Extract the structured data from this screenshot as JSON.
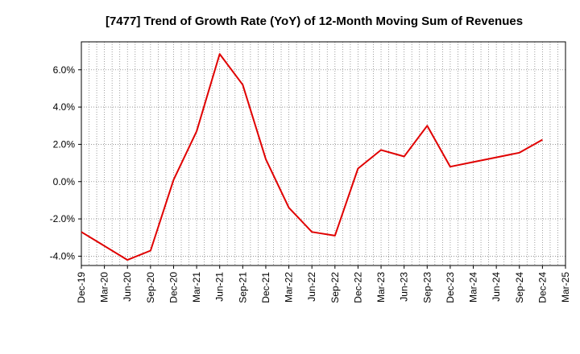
{
  "chart_data": {
    "type": "line",
    "title": "[7477]  Trend of Growth Rate (YoY) of 12-Month Moving Sum of Revenues",
    "xlabel": "",
    "ylabel": "",
    "categories": [
      "Dec-19",
      "Mar-20",
      "Jun-20",
      "Sep-20",
      "Dec-20",
      "Mar-21",
      "Jun-21",
      "Sep-21",
      "Dec-21",
      "Mar-22",
      "Jun-22",
      "Sep-22",
      "Dec-22",
      "Mar-23",
      "Jun-23",
      "Sep-23",
      "Dec-23",
      "Mar-24",
      "Jun-24",
      "Sep-24",
      "Dec-24",
      "Mar-25"
    ],
    "series": [
      {
        "color": "#e00000",
        "values": [
          -2.7,
          -3.45,
          -4.2,
          -3.7,
          0.1,
          2.7,
          6.85,
          5.2,
          1.2,
          -1.4,
          -2.7,
          -2.9,
          0.7,
          1.7,
          1.35,
          3.0,
          0.8,
          1.05,
          1.3,
          1.55,
          2.25,
          null
        ]
      }
    ],
    "yticks": [
      -4.0,
      -2.0,
      0.0,
      2.0,
      4.0,
      6.0
    ],
    "ytick_labels": [
      "-4.0%",
      "-2.0%",
      "0.0%",
      "2.0%",
      "4.0%",
      "6.0%"
    ],
    "ylim": [
      -4.5,
      7.5
    ],
    "grid": true,
    "colors": {
      "line": "#e00000",
      "grid": "#888888",
      "axis": "#000000",
      "background": "#ffffff"
    }
  }
}
